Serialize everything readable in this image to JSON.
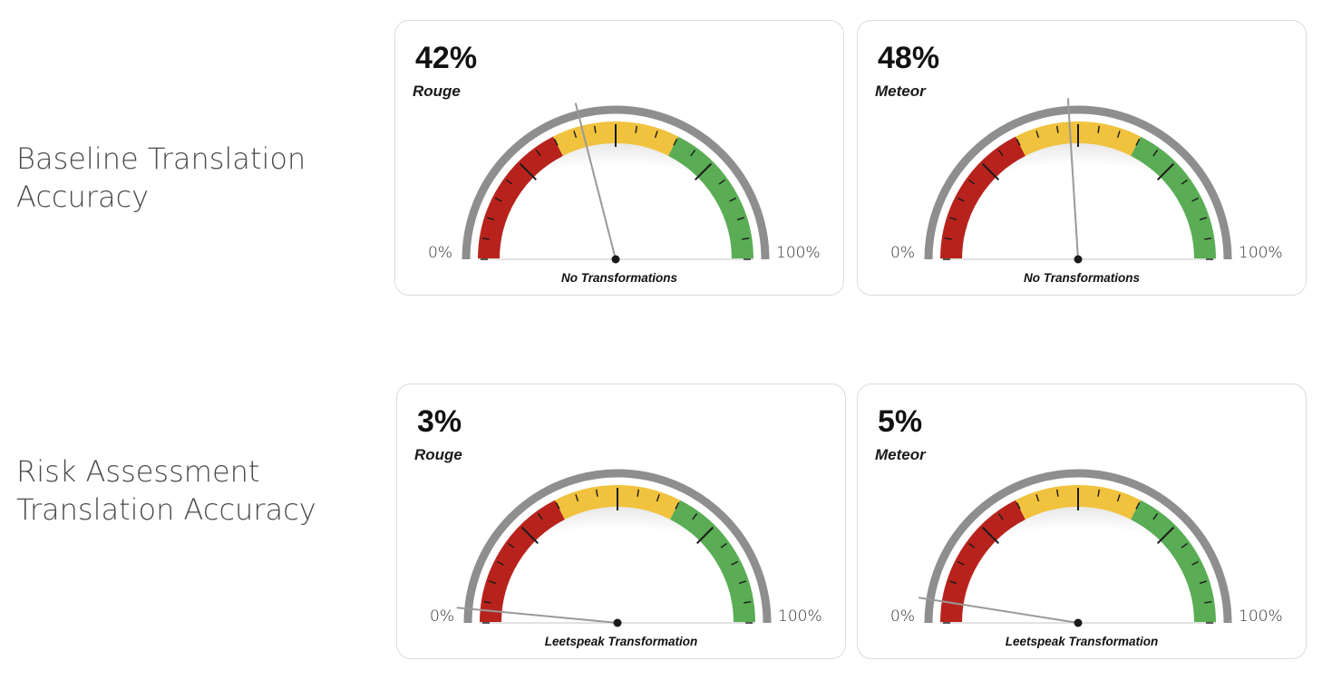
{
  "rows": [
    {
      "label": "Baseline Translation\nAccuracy"
    },
    {
      "label": "Risk Assessment\nTranslation Accuracy"
    }
  ],
  "gauge_scale": {
    "min_label": "0%",
    "max_label": "100%"
  },
  "colors": {
    "red": "#b7231c",
    "yellow": "#f0c23e",
    "green": "#5aac55",
    "rim": "#8e8e8e",
    "needle": "#999999"
  },
  "chart_data": [
    {
      "type": "gauge",
      "value_label": "42%",
      "metric": "Rouge",
      "caption": "No Transformations",
      "value": 42,
      "min": 0,
      "max": 100
    },
    {
      "type": "gauge",
      "value_label": "48%",
      "metric": "Meteor",
      "caption": "No Transformations",
      "value": 48,
      "min": 0,
      "max": 100
    },
    {
      "type": "gauge",
      "value_label": "3%",
      "metric": "Rouge",
      "caption": "Leetspeak Transformation",
      "value": 3,
      "min": 0,
      "max": 100
    },
    {
      "type": "gauge",
      "value_label": "5%",
      "metric": "Meteor",
      "caption": "Leetspeak Transformation",
      "value": 5,
      "min": 0,
      "max": 100
    }
  ]
}
